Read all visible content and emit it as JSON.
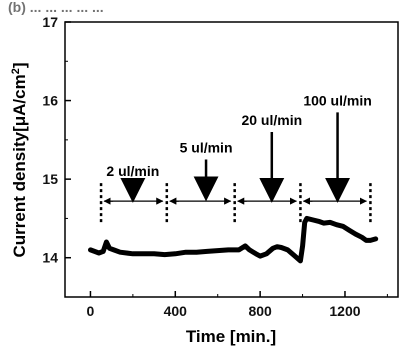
{
  "header_fragment": "(b) ... ... ... ... ...",
  "chart_data": {
    "type": "line",
    "xlabel": "Time [min.]",
    "ylabel_main": "Current density[",
    "ylabel_unit": "μA/cm",
    "ylabel_sup": "2",
    "ylabel_end": "]",
    "xlim": [
      -120,
      1450
    ],
    "ylim": [
      13.5,
      17
    ],
    "xticks": [
      0,
      400,
      800,
      1200
    ],
    "yticks": [
      14,
      15,
      16,
      17
    ],
    "grid": false,
    "series": [
      {
        "x": [
          0,
          40,
          60,
          75,
          90,
          110,
          140,
          170,
          200,
          250,
          300,
          350,
          400,
          450,
          500,
          550,
          600,
          650,
          700,
          730,
          750,
          780,
          800,
          830,
          860,
          880,
          900,
          930,
          960,
          990,
          1000,
          1010,
          1020,
          1050,
          1080,
          1100,
          1130,
          1160,
          1190,
          1220,
          1250,
          1280,
          1300,
          1320,
          1345
        ],
        "y": [
          14.1,
          14.06,
          14.08,
          14.2,
          14.12,
          14.1,
          14.07,
          14.06,
          14.05,
          14.05,
          14.05,
          14.04,
          14.05,
          14.07,
          14.07,
          14.08,
          14.09,
          14.1,
          14.1,
          14.15,
          14.1,
          14.05,
          14.02,
          14.05,
          14.12,
          14.14,
          14.13,
          14.1,
          14.03,
          13.96,
          14.15,
          14.45,
          14.5,
          14.48,
          14.46,
          14.44,
          14.45,
          14.42,
          14.4,
          14.35,
          14.3,
          14.26,
          14.22,
          14.22,
          14.24
        ]
      }
    ],
    "annotations": [
      {
        "label": "2 ul/min",
        "start": 50,
        "end": 360,
        "arrow_x": 200,
        "arrow_from": 14.95,
        "arrow_to": 14.78
      },
      {
        "label": "5 ul/min",
        "start": 360,
        "end": 680,
        "arrow_x": 545,
        "arrow_from": 15.25,
        "arrow_to": 14.8
      },
      {
        "label": "20 ul/min",
        "start": 680,
        "end": 990,
        "arrow_x": 855,
        "arrow_from": 15.6,
        "arrow_to": 14.78
      },
      {
        "label": "100 ul/min",
        "start": 990,
        "end": 1320,
        "arrow_x": 1165,
        "arrow_from": 15.85,
        "arrow_to": 14.78
      }
    ],
    "bracket_level": 14.72
  }
}
